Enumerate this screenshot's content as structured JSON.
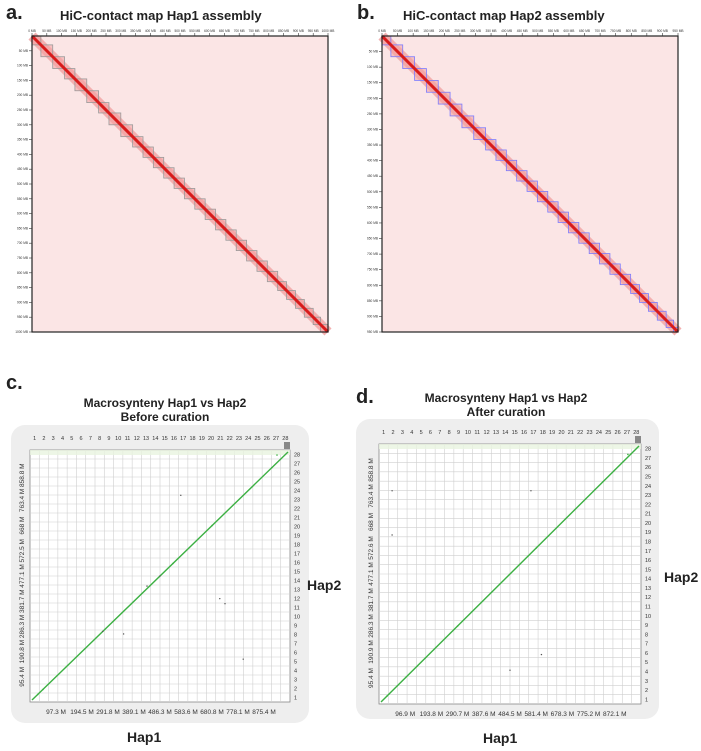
{
  "panels": {
    "a": {
      "letter": "a.",
      "title": "HiC-contact map Hap1 assembly",
      "top_ticks": [
        "0 MB",
        "50 MB",
        "100 MB",
        "150 MB",
        "200 MB",
        "250 MB",
        "300 MB",
        "350 MB",
        "400 MB",
        "450 MB",
        "500 MB",
        "550 MB",
        "600 MB",
        "650 MB",
        "700 MB",
        "750 MB",
        "800 MB",
        "850 MB",
        "900 MB",
        "950 MB",
        "1000 MB"
      ],
      "left_ticks": [
        "50 MB",
        "100 MB",
        "150 MB",
        "200 MB",
        "250 MB",
        "300 MB",
        "350 MB",
        "400 MB",
        "450 MB",
        "500 MB",
        "550 MB",
        "600 MB",
        "650 MB",
        "700 MB",
        "750 MB",
        "800 MB",
        "850 MB",
        "900 MB",
        "950 MB",
        "1000 MB"
      ],
      "box_color": "#9a9a9a",
      "scaffold_fractions": [
        0.03,
        0.07,
        0.11,
        0.145,
        0.185,
        0.225,
        0.26,
        0.3,
        0.34,
        0.375,
        0.41,
        0.445,
        0.48,
        0.515,
        0.55,
        0.585,
        0.62,
        0.655,
        0.69,
        0.725,
        0.76,
        0.795,
        0.83,
        0.86,
        0.89,
        0.92,
        0.95,
        0.975,
        1.0
      ]
    },
    "b": {
      "letter": "b.",
      "title": "HiC-contact map Hap2 assembly",
      "top_ticks": [
        "0 MB",
        "50 MB",
        "100 MB",
        "150 MB",
        "200 MB",
        "250 MB",
        "300 MB",
        "350 MB",
        "400 MB",
        "450 MB",
        "500 MB",
        "550 MB",
        "600 MB",
        "650 MB",
        "700 MB",
        "750 MB",
        "800 MB",
        "850 MB",
        "900 MB",
        "950 MB"
      ],
      "left_ticks": [
        "50 MB",
        "100 MB",
        "150 MB",
        "200 MB",
        "250 MB",
        "300 MB",
        "350 MB",
        "400 MB",
        "450 MB",
        "500 MB",
        "550 MB",
        "600 MB",
        "650 MB",
        "700 MB",
        "750 MB",
        "800 MB",
        "850 MB",
        "900 MB",
        "950 MB"
      ],
      "box_color": "#7b7bff",
      "scaffold_fractions": [
        0.03,
        0.07,
        0.11,
        0.15,
        0.19,
        0.23,
        0.27,
        0.31,
        0.35,
        0.385,
        0.42,
        0.455,
        0.49,
        0.525,
        0.56,
        0.595,
        0.63,
        0.665,
        0.7,
        0.735,
        0.77,
        0.805,
        0.84,
        0.87,
        0.9,
        0.93,
        0.96,
        0.985,
        1.0
      ]
    },
    "c": {
      "letter": "c.",
      "title_line1": "Macrosynteny Hap1 vs Hap2",
      "title_line2": "Before curation",
      "top_numbers": [
        "1",
        "2",
        "3",
        "4",
        "5",
        "6",
        "7",
        "8",
        "9",
        "10",
        "11",
        "12",
        "13",
        "14",
        "15",
        "16",
        "17",
        "18",
        "19",
        "20",
        "21",
        "22",
        "23",
        "24",
        "25",
        "26",
        "27",
        "28"
      ],
      "right_numbers": [
        "28",
        "27",
        "26",
        "25",
        "24",
        "23",
        "22",
        "21",
        "20",
        "19",
        "18",
        "17",
        "16",
        "15",
        "14",
        "13",
        "12",
        "11",
        "10",
        "9",
        "8",
        "7",
        "6",
        "5",
        "4",
        "3",
        "2",
        "1"
      ],
      "bottom_labels": [
        "97.3 M",
        "194.5 M",
        "291.8 M",
        "389.1 M",
        "486.3 M",
        "583.6 M",
        "680.8 M",
        "778.1 M",
        "875.4 M"
      ],
      "left_labels": [
        "95.4 M",
        "190.8 M",
        "286.3 M",
        "381.7 M",
        "477.1 M",
        "572.5 M",
        "668 M",
        "763.4 M",
        "858.8 M"
      ],
      "xlabel": "Hap1",
      "ylabel": "Hap2",
      "line_color": "#3cb043"
    },
    "d": {
      "letter": "d.",
      "title_line1": "Macrosynteny Hap1 vs Hap2",
      "title_line2": "After curation",
      "top_numbers": [
        "1",
        "2",
        "3",
        "4",
        "5",
        "6",
        "7",
        "8",
        "9",
        "10",
        "11",
        "12",
        "13",
        "14",
        "15",
        "16",
        "17",
        "18",
        "19",
        "20",
        "21",
        "22",
        "23",
        "24",
        "25",
        "26",
        "27",
        "28"
      ],
      "right_numbers": [
        "28",
        "27",
        "26",
        "25",
        "24",
        "23",
        "22",
        "21",
        "20",
        "19",
        "18",
        "17",
        "16",
        "15",
        "14",
        "13",
        "12",
        "11",
        "10",
        "9",
        "8",
        "7",
        "6",
        "5",
        "4",
        "3",
        "2",
        "1"
      ],
      "bottom_labels": [
        "96.9 M",
        "193.8 M",
        "290.7 M",
        "387.6 M",
        "484.5 M",
        "581.4 M",
        "678.3 M",
        "775.2 M",
        "872.1 M"
      ],
      "left_labels": [
        "95.4 M",
        "190.9 M",
        "286.3 M",
        "381.7 M",
        "477.1 M",
        "572.6 M",
        "668 M",
        "763.4 M",
        "858.8 M"
      ],
      "xlabel": "Hap1",
      "ylabel": "Hap2",
      "line_color": "#3cb043"
    }
  }
}
